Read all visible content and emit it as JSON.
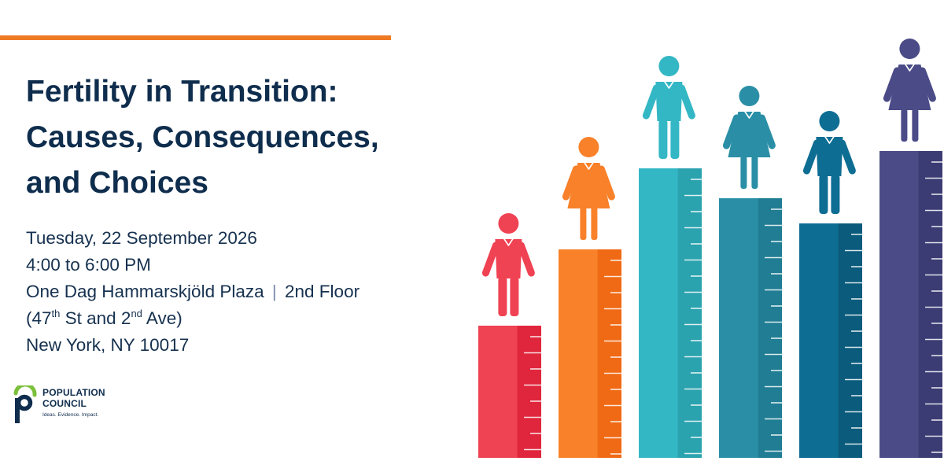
{
  "colors": {
    "accent_rule": "#ee7a24",
    "title": "#0f2d4d",
    "text": "#16314f",
    "logo_green": "#7bbf3a",
    "logo_blue": "#0f2d4d"
  },
  "title": {
    "line1": "Fertility in Transition:",
    "line2": "Causes, Consequences,",
    "line3": "and Choices"
  },
  "event": {
    "date": "Tuesday, 22 September 2026",
    "time": "4:00 to 6:00 PM",
    "venue": "One Dag Hammarskjöld Plaza",
    "separator": "|",
    "floor": "2nd Floor",
    "cross_open": "(47",
    "cross_sup1": "th",
    "cross_mid": " St and 2",
    "cross_sup2": "nd",
    "cross_close": " Ave)",
    "city": "New York, NY 10017"
  },
  "logo": {
    "line1": "POPULATION",
    "line2": "COUNCIL",
    "tagline": "Ideas. Evidence. Impact."
  },
  "illustration": {
    "bars": [
      {
        "color": "#ef4253",
        "shade": "#e0263c",
        "figure": "man",
        "level": 0.31
      },
      {
        "color": "#f8812a",
        "shade": "#f06a15",
        "figure": "woman",
        "level": 0.49
      },
      {
        "color": "#34b7c4",
        "shade": "#2aa3af",
        "figure": "man",
        "level": 0.68
      },
      {
        "color": "#2a8fa6",
        "shade": "#207d93",
        "figure": "woman",
        "level": 0.61
      },
      {
        "color": "#0e6d93",
        "shade": "#0a5b7c",
        "figure": "man",
        "level": 0.55
      },
      {
        "color": "#4a4b87",
        "shade": "#3b3c74",
        "figure": "woman",
        "level": 0.72
      }
    ]
  }
}
